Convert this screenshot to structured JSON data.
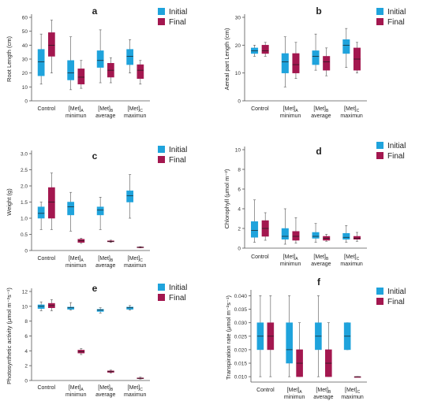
{
  "colors": {
    "initial": "#1fa3dc",
    "final": "#a3174f",
    "axis": "#555555",
    "whisker": "#555555"
  },
  "legend": {
    "initial": "Initial",
    "final": "Final"
  },
  "categories": [
    {
      "main": "Control",
      "sub": "",
      "desc": ""
    },
    {
      "main": "[Met]",
      "sub": "A",
      "desc": "minimun"
    },
    {
      "main": "[Met]",
      "sub": "B",
      "desc": "average"
    },
    {
      "main": "[Met]",
      "sub": "C",
      "desc": "maximun"
    }
  ],
  "chart_data": [
    {
      "panel": "a",
      "type": "box",
      "ylabel": "Root Length (cm)",
      "ylim": [
        0,
        60
      ],
      "yticks": [
        "0",
        "10",
        "20",
        "30",
        "40",
        "50",
        "60"
      ],
      "series": [
        {
          "name": "Initial",
          "boxes": [
            {
              "min": 12,
              "q1": 18,
              "median": 28,
              "q3": 37,
              "max": 48
            },
            {
              "min": 8,
              "q1": 15,
              "median": 20,
              "q3": 29,
              "max": 46
            },
            {
              "min": 13,
              "q1": 24,
              "median": 29,
              "q3": 36,
              "max": 51
            },
            {
              "min": 20,
              "q1": 26,
              "median": 32,
              "q3": 37,
              "max": 44
            }
          ]
        },
        {
          "name": "Final",
          "boxes": [
            {
              "min": 20,
              "q1": 32,
              "median": 40,
              "q3": 49,
              "max": 58
            },
            {
              "min": 9,
              "q1": 12,
              "median": 17,
              "q3": 23,
              "max": 29
            },
            {
              "min": 13,
              "q1": 17,
              "median": 22,
              "q3": 27,
              "max": 31
            },
            {
              "min": 12,
              "q1": 16,
              "median": 22,
              "q3": 26,
              "max": 29
            }
          ]
        }
      ]
    },
    {
      "panel": "b",
      "type": "box",
      "ylabel": "Aereal part Length (cm)",
      "ylim": [
        0,
        30
      ],
      "yticks": [
        "0",
        "10",
        "20",
        "30"
      ],
      "series": [
        {
          "name": "Initial",
          "boxes": [
            {
              "min": 16,
              "q1": 17,
              "median": 18,
              "q3": 19,
              "max": 20
            },
            {
              "min": 5,
              "q1": 10,
              "median": 14,
              "q3": 17,
              "max": 23
            },
            {
              "min": 11,
              "q1": 13,
              "median": 16,
              "q3": 18,
              "max": 24
            },
            {
              "min": 12,
              "q1": 17,
              "median": 20,
              "q3": 22,
              "max": 26
            }
          ]
        },
        {
          "name": "Final",
          "boxes": [
            {
              "min": 16,
              "q1": 17,
              "median": 18,
              "q3": 20,
              "max": 21
            },
            {
              "min": 8,
              "q1": 10,
              "median": 13,
              "q3": 17,
              "max": 21
            },
            {
              "min": 9,
              "q1": 11,
              "median": 14,
              "q3": 16,
              "max": 19
            },
            {
              "min": 10,
              "q1": 11,
              "median": 15,
              "q3": 19,
              "max": 21
            }
          ]
        }
      ]
    },
    {
      "panel": "c",
      "type": "box",
      "ylabel": "Weight (g)",
      "ylim": [
        0,
        3.0
      ],
      "yticks": [
        "0",
        "0.5",
        "1.0",
        "1.5",
        "2.0",
        "2.5",
        "3.0"
      ],
      "series": [
        {
          "name": "Initial",
          "boxes": [
            {
              "min": 0.65,
              "q1": 1.0,
              "median": 1.15,
              "q3": 1.35,
              "max": 1.5
            },
            {
              "min": 0.6,
              "q1": 1.1,
              "median": 1.35,
              "q3": 1.5,
              "max": 1.8
            },
            {
              "min": 0.65,
              "q1": 1.1,
              "median": 1.25,
              "q3": 1.35,
              "max": 1.65
            },
            {
              "min": 1.0,
              "q1": 1.5,
              "median": 1.7,
              "q3": 1.85,
              "max": 2.35
            }
          ]
        },
        {
          "name": "Final",
          "boxes": [
            {
              "min": 0.65,
              "q1": 1.0,
              "median": 1.5,
              "q3": 1.95,
              "max": 2.4
            },
            {
              "min": 0.22,
              "q1": 0.25,
              "median": 0.3,
              "q3": 0.35,
              "max": 0.38
            },
            {
              "min": 0.25,
              "q1": 0.27,
              "median": 0.28,
              "q3": 0.3,
              "max": 0.32
            },
            {
              "min": 0.08,
              "q1": 0.09,
              "median": 0.1,
              "q3": 0.11,
              "max": 0.12
            }
          ]
        }
      ]
    },
    {
      "panel": "d",
      "type": "box",
      "ylabel": "Chlorophyll (μmol m⁻²)",
      "ylim": [
        0,
        10
      ],
      "yticks": [
        "0",
        "2",
        "4",
        "6",
        "8",
        "10"
      ],
      "series": [
        {
          "name": "Initial",
          "boxes": [
            {
              "min": 0.6,
              "q1": 1.1,
              "median": 1.8,
              "q3": 2.7,
              "max": 4.9
            },
            {
              "min": 0.4,
              "q1": 0.9,
              "median": 1.2,
              "q3": 2.0,
              "max": 4.0
            },
            {
              "min": 0.6,
              "q1": 1.0,
              "median": 1.2,
              "q3": 1.6,
              "max": 2.5
            },
            {
              "min": 0.6,
              "q1": 0.9,
              "median": 1.1,
              "q3": 1.5,
              "max": 2.3
            }
          ]
        },
        {
          "name": "Final",
          "boxes": [
            {
              "min": 0.8,
              "q1": 1.2,
              "median": 2.0,
              "q3": 2.8,
              "max": 3.6
            },
            {
              "min": 0.5,
              "q1": 0.8,
              "median": 1.2,
              "q3": 1.7,
              "max": 3.1
            },
            {
              "min": 0.7,
              "q1": 0.8,
              "median": 1.0,
              "q3": 1.2,
              "max": 1.4
            },
            {
              "min": 0.7,
              "q1": 0.9,
              "median": 1.0,
              "q3": 1.2,
              "max": 1.6
            }
          ]
        }
      ]
    },
    {
      "panel": "e",
      "type": "box",
      "ylabel": "Photosynthetic activity (μmol m⁻²s⁻¹)",
      "ylim": [
        0,
        12
      ],
      "yticks": [
        "0",
        "2",
        "4",
        "6",
        "8",
        "10",
        "12"
      ],
      "series": [
        {
          "name": "Initial",
          "boxes": [
            {
              "min": 9.4,
              "q1": 9.7,
              "median": 10.0,
              "q3": 10.2,
              "max": 10.6
            },
            {
              "min": 9.5,
              "q1": 9.6,
              "median": 9.8,
              "q3": 9.9,
              "max": 10.5
            },
            {
              "min": 9.1,
              "q1": 9.3,
              "median": 9.5,
              "q3": 9.6,
              "max": 9.8
            },
            {
              "min": 9.5,
              "q1": 9.6,
              "median": 9.8,
              "q3": 9.9,
              "max": 10.1
            }
          ]
        },
        {
          "name": "Final",
          "boxes": [
            {
              "min": 9.4,
              "q1": 9.8,
              "median": 10.1,
              "q3": 10.4,
              "max": 10.9
            },
            {
              "min": 3.5,
              "q1": 3.7,
              "median": 3.9,
              "q3": 4.1,
              "max": 4.3
            },
            {
              "min": 1.0,
              "q1": 1.1,
              "median": 1.2,
              "q3": 1.3,
              "max": 1.4
            },
            {
              "min": 0.2,
              "q1": 0.25,
              "median": 0.3,
              "q3": 0.35,
              "max": 0.45
            }
          ]
        }
      ]
    },
    {
      "panel": "f",
      "type": "box",
      "ylabel": "Transpiration rate (μmol m⁻²s⁻¹)",
      "ylim": [
        0.008,
        0.041
      ],
      "yticks": [
        "0.040",
        "0.035",
        "0.030",
        "0.025",
        "0.020",
        "0.015",
        "0.010"
      ],
      "ytick_values": [
        0.04,
        0.035,
        0.03,
        0.025,
        0.02,
        0.015,
        0.01
      ],
      "series": [
        {
          "name": "Initial",
          "boxes": [
            {
              "min": 0.01,
              "q1": 0.02,
              "median": 0.025,
              "q3": 0.03,
              "max": 0.04
            },
            {
              "min": 0.01,
              "q1": 0.015,
              "median": 0.02,
              "q3": 0.03,
              "max": 0.04
            },
            {
              "min": 0.01,
              "q1": 0.02,
              "median": 0.025,
              "q3": 0.03,
              "max": 0.04
            },
            {
              "min": 0.02,
              "q1": 0.02,
              "median": 0.025,
              "q3": 0.03,
              "max": 0.03
            }
          ]
        },
        {
          "name": "Final",
          "boxes": [
            {
              "min": 0.01,
              "q1": 0.02,
              "median": 0.025,
              "q3": 0.03,
              "max": 0.04
            },
            {
              "min": 0.01,
              "q1": 0.01,
              "median": 0.015,
              "q3": 0.02,
              "max": 0.03
            },
            {
              "min": 0.01,
              "q1": 0.01,
              "median": 0.015,
              "q3": 0.02,
              "max": 0.03
            },
            {
              "min": 0.01,
              "q1": 0.01,
              "median": 0.01,
              "q3": 0.01,
              "max": 0.01
            }
          ]
        }
      ]
    }
  ]
}
